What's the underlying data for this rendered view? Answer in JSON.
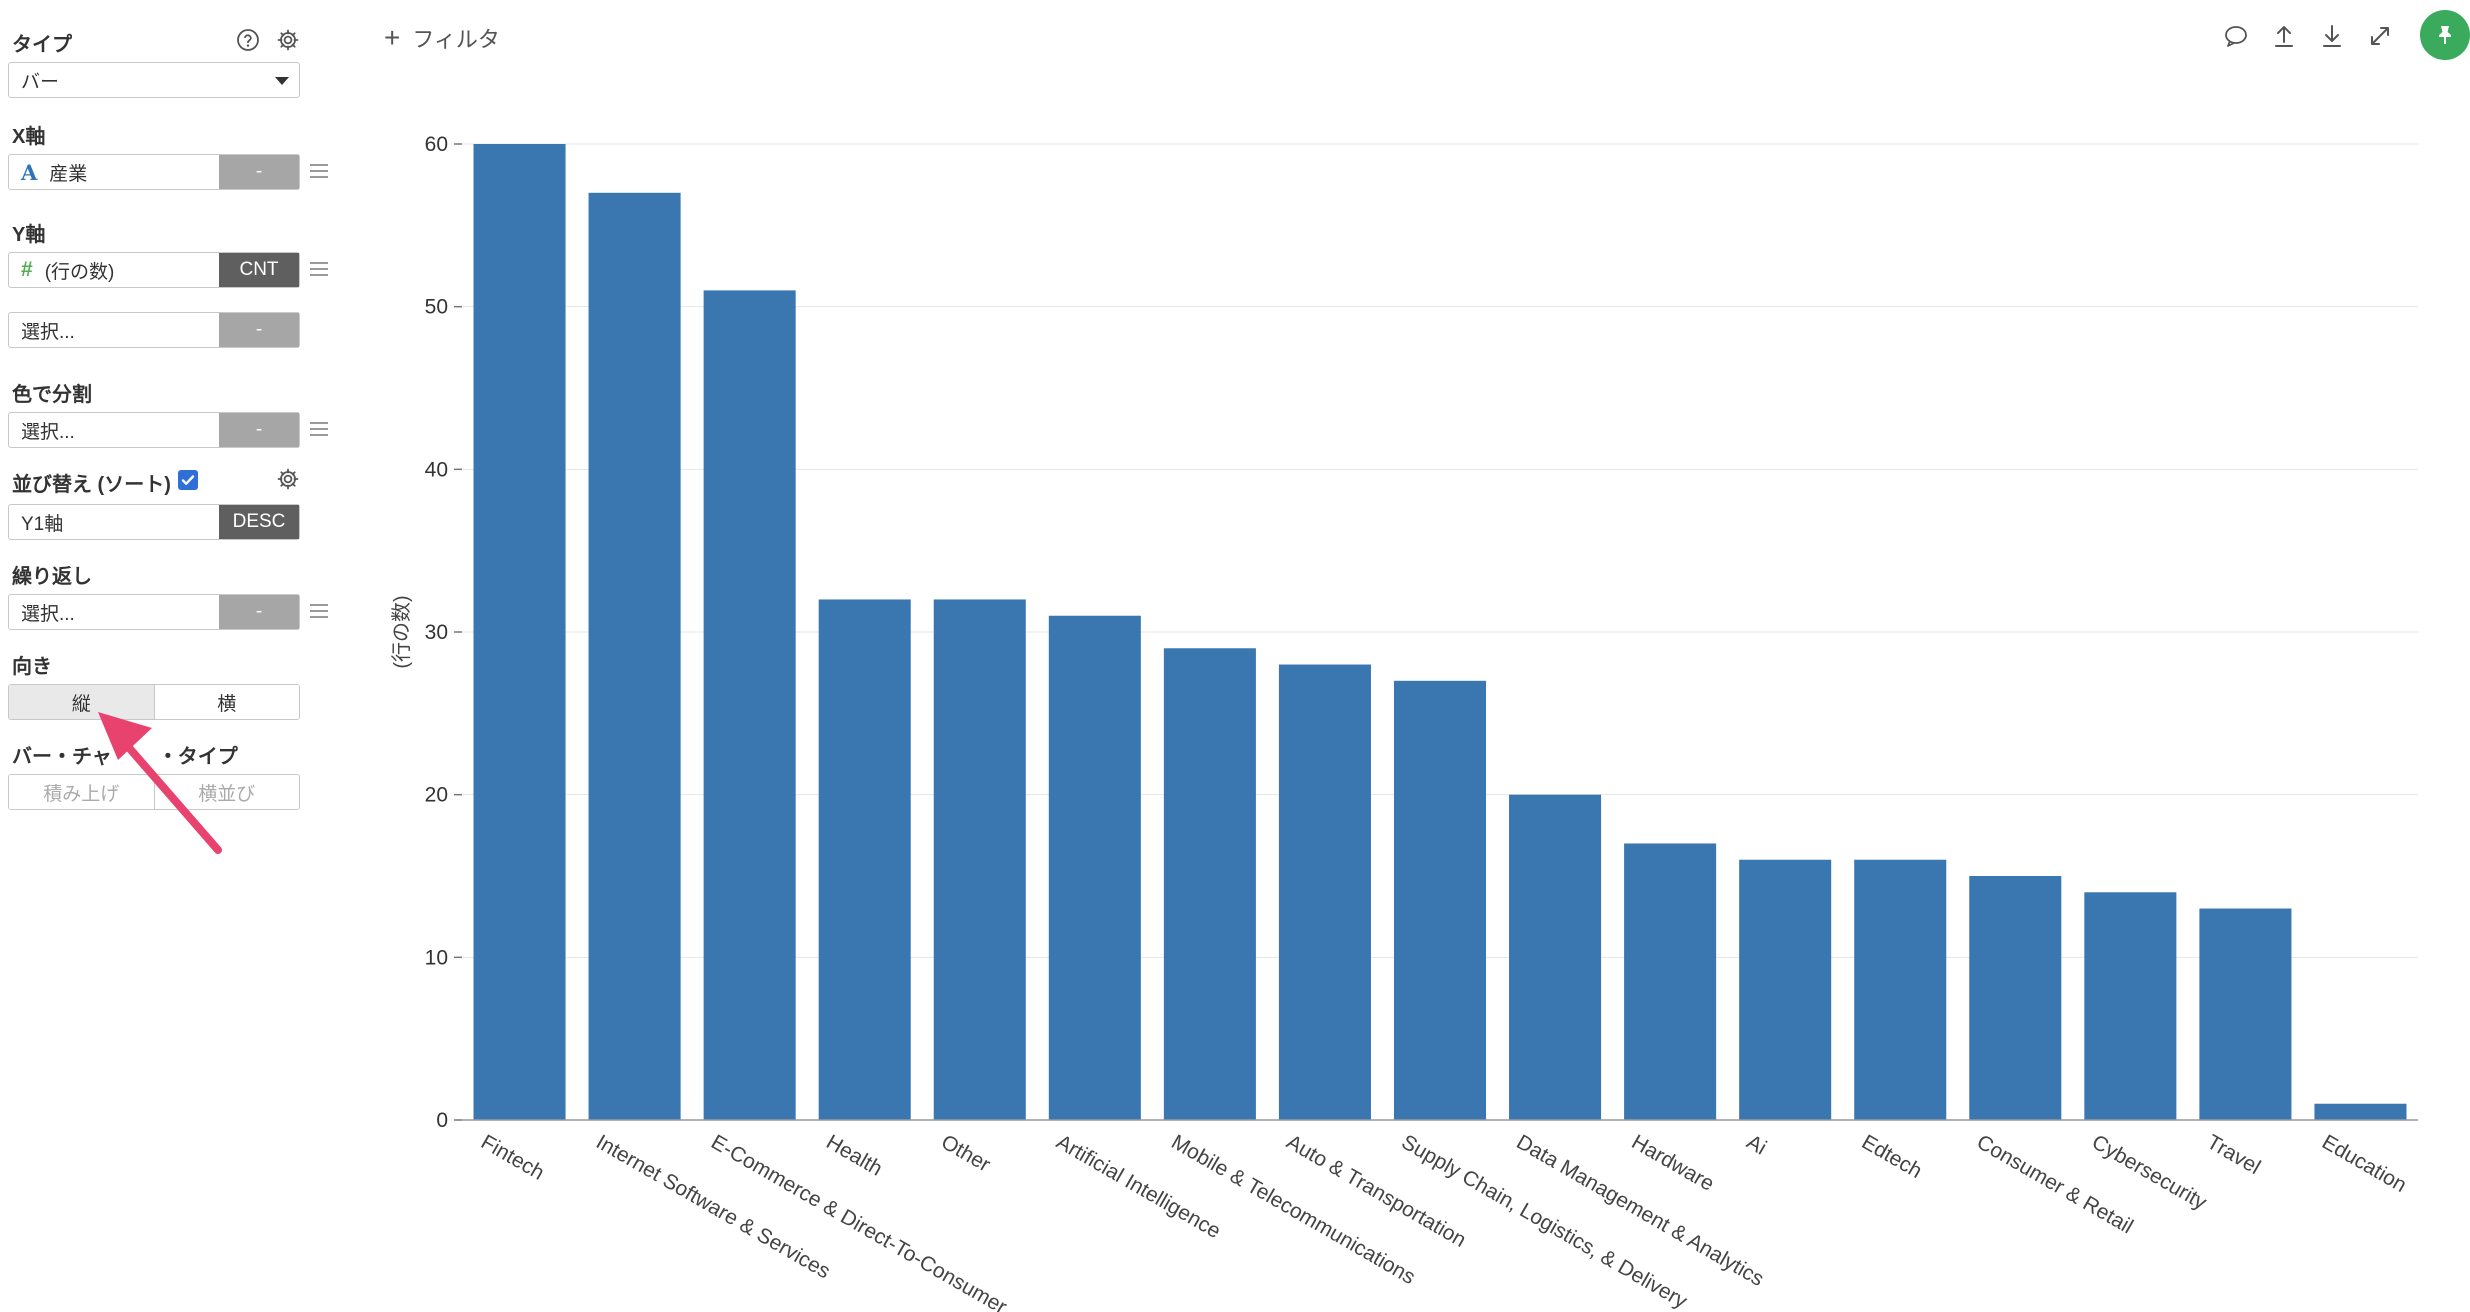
{
  "sidebar": {
    "type_label": "タイプ",
    "type_value": "バー",
    "x_axis_label": "X軸",
    "x_field": "産業",
    "x_agg": "-",
    "y_axis_label": "Y軸",
    "y_field": "(行の数)",
    "y_agg": "CNT",
    "y2_field": "選択...",
    "y2_agg": "-",
    "color_label": "色で分割",
    "color_field": "選択...",
    "color_agg": "-",
    "sort_label": "並び替え (ソート)",
    "sort_checked": true,
    "sort_field": "Y1軸",
    "sort_order": "DESC",
    "repeat_label": "繰り返し",
    "repeat_field": "選択...",
    "repeat_agg": "-",
    "orientation_label": "向き",
    "orientation_options": [
      "縦",
      "横"
    ],
    "bar_type_label_left": "バー・チャ",
    "bar_type_label_right": "・タイプ",
    "bar_type_options": [
      "積み上げ",
      "横並び"
    ]
  },
  "topbar": {
    "filter_label": "フィルタ"
  },
  "icons": {
    "help": "help-circle-icon",
    "settings": "gear-icon",
    "comment": "comment-icon",
    "upload": "upload-icon",
    "download": "download-icon",
    "expand": "expand-icon",
    "pin": "pin-icon"
  },
  "colors": {
    "bar": "#3a76b0",
    "pin_button": "#3aaa5d",
    "arrow": "#e8436f"
  },
  "chart_data": {
    "type": "bar",
    "categories": [
      "Fintech",
      "Internet Software & Services",
      "E-Commerce & Direct-To-Consumer",
      "Health",
      "Other",
      "Artificial Intelligence",
      "Mobile & Telecommunications",
      "Auto & Transportation",
      "Supply Chain, Logistics, & Delivery",
      "Data Management & Analytics",
      "Hardware",
      "Ai",
      "Edtech",
      "Consumer & Retail",
      "Cybersecurity",
      "Travel",
      "Education"
    ],
    "values": [
      60,
      57,
      51,
      32,
      32,
      31,
      29,
      28,
      27,
      20,
      17,
      16,
      16,
      15,
      14,
      13,
      1
    ],
    "ylabel": "(行の数)",
    "ylim": [
      0,
      60
    ],
    "yticks": [
      0,
      10,
      20,
      30,
      40,
      50,
      60
    ],
    "grid": true
  }
}
